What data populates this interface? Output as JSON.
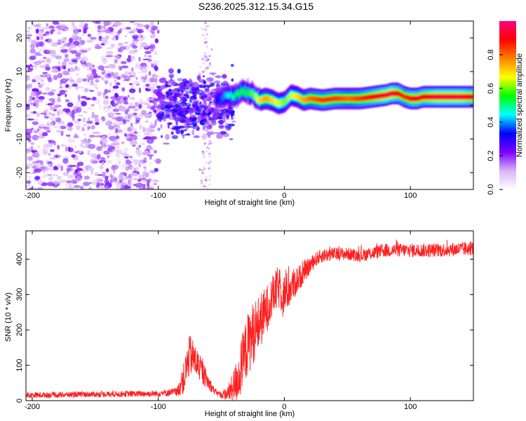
{
  "title": "S236.2025.312.15.34.G15",
  "chart_data": [
    {
      "type": "heatmap",
      "name": "spectrogram",
      "xlabel": "Height of straight line (km)",
      "ylabel": "Frequency (Hz)",
      "xlim": [
        -205,
        150
      ],
      "ylim": [
        -25,
        25
      ],
      "xticks": [
        -200,
        -100,
        0,
        100
      ],
      "yticks": [
        -20,
        -10,
        0,
        10,
        20
      ],
      "colorbar": {
        "label": "Normalized spectral amplitude",
        "range": [
          0,
          1
        ],
        "ticks": [
          0.0,
          0.2,
          0.4,
          0.6,
          0.8
        ],
        "tick_labels": [
          "0.0",
          "0.2",
          "0.4",
          "0.6",
          "0.8"
        ],
        "colors": [
          "#ffffff",
          "#d8b4f8",
          "#7b00ff",
          "#0000ff",
          "#00ffff",
          "#00ff00",
          "#ffff00",
          "#ff8000",
          "#ff0000",
          "#ff0080"
        ]
      },
      "ridge": {
        "x": [
          -55,
          -45,
          -40,
          -35,
          -30,
          -25,
          -20,
          -15,
          -10,
          -5,
          0,
          5,
          10,
          15,
          20,
          30,
          40,
          50,
          60,
          70,
          80,
          85,
          90,
          95,
          100,
          105,
          110,
          120,
          130,
          140,
          150
        ],
        "freq": [
          1.5,
          3.0,
          2.5,
          4.0,
          4.0,
          3.0,
          1.5,
          2.0,
          1.5,
          0.5,
          1.0,
          3.0,
          2.5,
          1.5,
          2.0,
          1.5,
          2.0,
          2.0,
          2.0,
          2.5,
          3.0,
          3.5,
          3.5,
          2.5,
          2.0,
          2.0,
          2.5,
          2.5,
          2.5,
          2.5,
          2.5
        ],
        "amplitude": [
          0.3,
          0.45,
          0.5,
          0.55,
          0.55,
          0.6,
          0.7,
          0.75,
          0.7,
          0.65,
          0.6,
          0.65,
          0.7,
          0.75,
          0.8,
          0.85,
          0.85,
          0.8,
          0.85,
          0.9,
          0.95,
          0.95,
          0.9,
          0.85,
          0.9,
          0.9,
          0.9,
          0.95,
          0.95,
          0.95,
          0.9
        ]
      },
      "noise_regions": [
        {
          "x_range": [
            -205,
            -100
          ],
          "freq_range": [
            -25,
            25
          ],
          "amplitude": [
            0.05,
            0.25
          ]
        },
        {
          "x_range": [
            -100,
            -40
          ],
          "freq_range": [
            -15,
            15
          ],
          "amplitude": [
            0.15,
            0.35
          ]
        }
      ]
    },
    {
      "type": "line",
      "name": "snr",
      "xlabel": "Height of straight line (km)",
      "ylabel": "SNR (10 * v/v)",
      "xlim": [
        -205,
        150
      ],
      "ylim": [
        0,
        480
      ],
      "xticks": [
        -200,
        -100,
        0,
        100
      ],
      "yticks": [
        0,
        100,
        200,
        300,
        400
      ],
      "color": "#ff2020",
      "trend": {
        "x": [
          -205,
          -150,
          -100,
          -85,
          -80,
          -75,
          -70,
          -65,
          -60,
          -55,
          -50,
          -45,
          -40,
          -35,
          -30,
          -25,
          -20,
          -15,
          -10,
          -5,
          0,
          5,
          10,
          15,
          20,
          25,
          30,
          40,
          50,
          60,
          80,
          100,
          120,
          150
        ],
        "snr": [
          15,
          18,
          20,
          25,
          60,
          130,
          110,
          80,
          50,
          25,
          15,
          20,
          40,
          80,
          150,
          190,
          220,
          250,
          290,
          320,
          300,
          320,
          340,
          360,
          380,
          400,
          410,
          415,
          415,
          410,
          425,
          425,
          425,
          430
        ],
        "noise_amplitude": [
          8,
          8,
          9,
          12,
          45,
          60,
          45,
          35,
          20,
          10,
          8,
          20,
          50,
          80,
          90,
          90,
          80,
          70,
          60,
          60,
          60,
          50,
          40,
          30,
          25,
          20,
          20,
          18,
          18,
          18,
          20,
          20,
          20,
          20
        ]
      }
    }
  ]
}
